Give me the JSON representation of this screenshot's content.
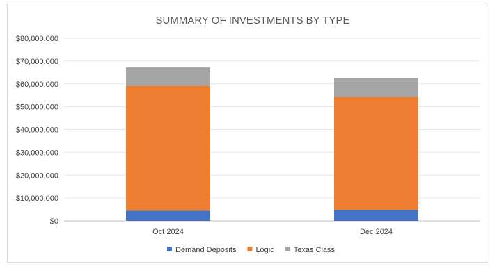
{
  "chart_data": {
    "type": "bar",
    "stacked": true,
    "title": "SUMMARY OF INVESTMENTS BY TYPE",
    "categories": [
      "Oct 2024",
      "Dec 2024"
    ],
    "series": [
      {
        "name": "Demand Deposits",
        "color": "#4472C4",
        "values": [
          4500000,
          4800000
        ]
      },
      {
        "name": "Logic",
        "color": "#ED7D31",
        "values": [
          54700000,
          49500000
        ]
      },
      {
        "name": "Texas Class",
        "color": "#A5A5A5",
        "values": [
          8000000,
          8200000
        ]
      }
    ],
    "ylim": [
      0,
      80000000
    ],
    "yticks": [
      0,
      10000000,
      20000000,
      30000000,
      40000000,
      50000000,
      60000000,
      70000000,
      80000000
    ],
    "ytick_labels": [
      "$0",
      "$10,000,000",
      "$20,000,000",
      "$30,000,000",
      "$40,000,000",
      "$50,000,000",
      "$60,000,000",
      "$70,000,000",
      "$80,000,000"
    ],
    "grid": true,
    "legend_position": "bottom",
    "xlabel": "",
    "ylabel": ""
  }
}
